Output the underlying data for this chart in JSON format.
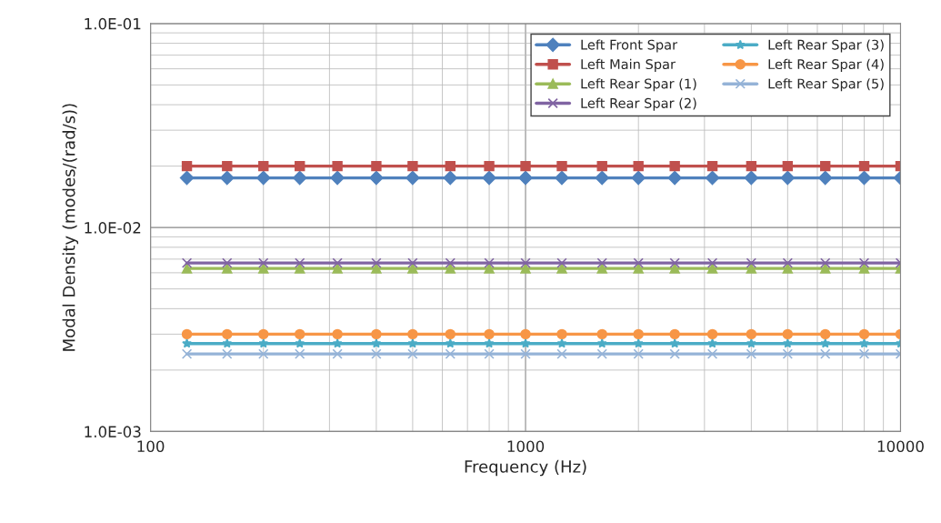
{
  "chart_data": {
    "type": "line",
    "xlabel": "Frequency (Hz)",
    "ylabel": "Modal Density (modes/(rad/s))",
    "log": "xy",
    "grid": true,
    "legend": "top right",
    "x": [
      125,
      160,
      200,
      250,
      315,
      400,
      500,
      630,
      800,
      1000,
      1250,
      1600,
      2000,
      2500,
      3150,
      4000,
      5000,
      6300,
      8000,
      10000
    ],
    "xlim": [
      100,
      10000
    ],
    "xticks": [
      100,
      1000,
      10000
    ],
    "ylim": [
      0.001,
      0.1
    ],
    "yticks": [
      {
        "value": 0.001,
        "label": "1.0E-03"
      },
      {
        "value": 0.01,
        "label": "1.0E-02"
      },
      {
        "value": 0.1,
        "label": "1.0E-01"
      }
    ],
    "series": [
      {
        "name": "Left Front Spar",
        "color": "#4f81bd",
        "marker": "diamond",
        "values": [
          0.0175,
          0.0175,
          0.0175,
          0.0175,
          0.0175,
          0.0175,
          0.0175,
          0.0175,
          0.0175,
          0.0175,
          0.0175,
          0.0175,
          0.0175,
          0.0175,
          0.0175,
          0.0175,
          0.0175,
          0.0175,
          0.0175,
          0.0175
        ]
      },
      {
        "name": "Left Main Spar",
        "color": "#c0504d",
        "marker": "square",
        "values": [
          0.02,
          0.02,
          0.02,
          0.02,
          0.02,
          0.02,
          0.02,
          0.02,
          0.02,
          0.02,
          0.02,
          0.02,
          0.02,
          0.02,
          0.02,
          0.02,
          0.02,
          0.02,
          0.02,
          0.02
        ]
      },
      {
        "name": "Left Rear Spar (1)",
        "color": "#9bbb59",
        "marker": "triangle",
        "values": [
          0.0063,
          0.0063,
          0.0063,
          0.0063,
          0.0063,
          0.0063,
          0.0063,
          0.0063,
          0.0063,
          0.0063,
          0.0063,
          0.0063,
          0.0063,
          0.0063,
          0.0063,
          0.0063,
          0.0063,
          0.0063,
          0.0063,
          0.0063
        ]
      },
      {
        "name": "Left Rear Spar (2)",
        "color": "#8064a2",
        "marker": "cross",
        "values": [
          0.0067,
          0.0067,
          0.0067,
          0.0067,
          0.0067,
          0.0067,
          0.0067,
          0.0067,
          0.0067,
          0.0067,
          0.0067,
          0.0067,
          0.0067,
          0.0067,
          0.0067,
          0.0067,
          0.0067,
          0.0067,
          0.0067,
          0.0067
        ]
      },
      {
        "name": "Left Rear Spar (3)",
        "color": "#4bacc6",
        "marker": "star",
        "values": [
          0.0027,
          0.0027,
          0.0027,
          0.0027,
          0.0027,
          0.0027,
          0.0027,
          0.0027,
          0.0027,
          0.0027,
          0.0027,
          0.0027,
          0.0027,
          0.0027,
          0.0027,
          0.0027,
          0.0027,
          0.0027,
          0.0027,
          0.0027
        ]
      },
      {
        "name": "Left Rear Spar (4)",
        "color": "#f79646",
        "marker": "circle",
        "values": [
          0.003,
          0.003,
          0.003,
          0.003,
          0.003,
          0.003,
          0.003,
          0.003,
          0.003,
          0.003,
          0.003,
          0.003,
          0.003,
          0.003,
          0.003,
          0.003,
          0.003,
          0.003,
          0.003,
          0.003
        ]
      },
      {
        "name": "Left Rear Spar (5)",
        "color": "#95b3d7",
        "marker": "cross",
        "values": [
          0.0024,
          0.0024,
          0.0024,
          0.0024,
          0.0024,
          0.0024,
          0.0024,
          0.0024,
          0.0024,
          0.0024,
          0.0024,
          0.0024,
          0.0024,
          0.0024,
          0.0024,
          0.0024,
          0.0024,
          0.0024,
          0.0024,
          0.0024
        ]
      }
    ]
  }
}
